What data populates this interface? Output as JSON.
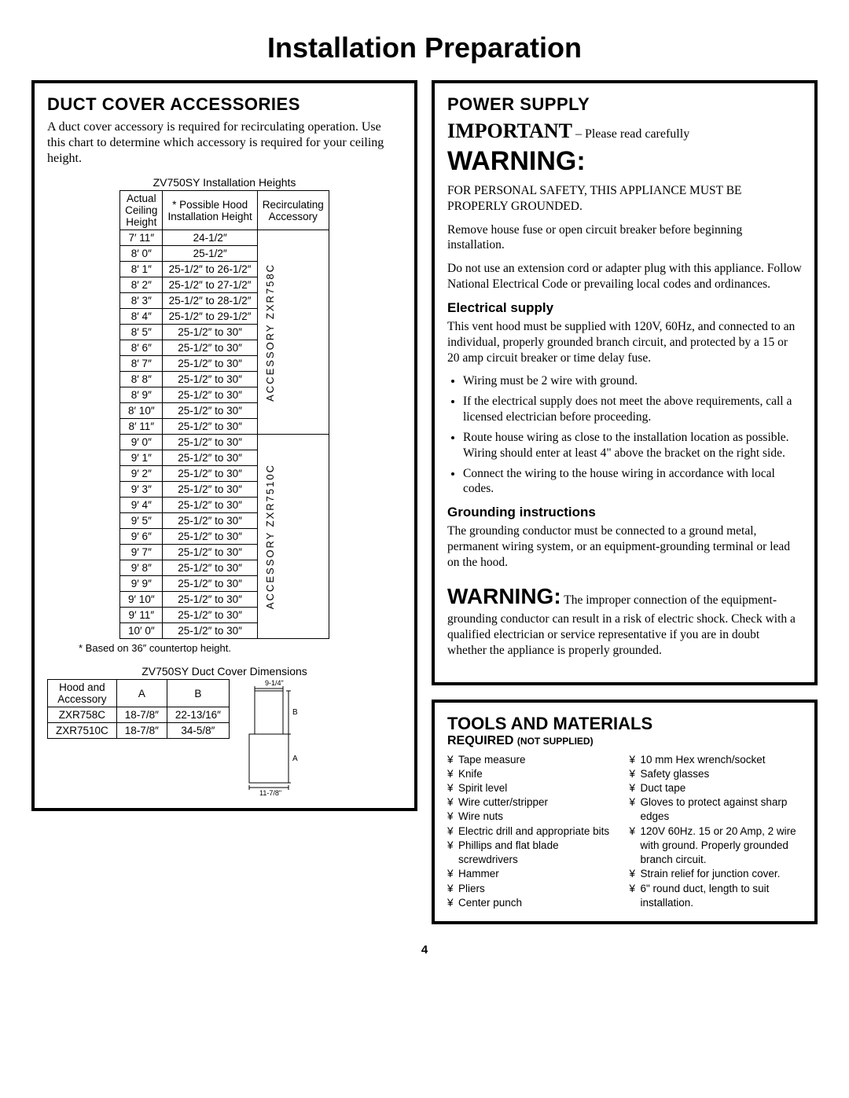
{
  "page_title": "Installation Preparation",
  "page_number": "4",
  "left": {
    "heading": "DUCT COVER ACCESSORIES",
    "intro": "A duct cover accessory is required for recirculating operation. Use this chart to determine which accessory is required for your ceiling height.",
    "heights_caption": "ZV750SY Installation Heights",
    "heights_headers": {
      "c1a": "Actual",
      "c1b": "Ceiling",
      "c1c": "Height",
      "c2a": "* Possible Hood",
      "c2b": "Installation Height",
      "c3a": "Recirculating",
      "c3b": "Accessory"
    },
    "accessory_label_1": "ACCESSORY ZXR758C",
    "accessory_label_2": "ACCESSORY ZXR7510C",
    "rows_g1": [
      {
        "h": "7′ 11″",
        "v": "24-1/2″"
      },
      {
        "h": "8′ 0″",
        "v": "25-1/2″"
      },
      {
        "h": "8′ 1″",
        "v": "25-1/2″ to 26-1/2″"
      },
      {
        "h": "8′ 2″",
        "v": "25-1/2″ to 27-1/2″"
      },
      {
        "h": "8′ 3″",
        "v": "25-1/2″ to 28-1/2″"
      },
      {
        "h": "8′ 4″",
        "v": "25-1/2″ to 29-1/2″"
      },
      {
        "h": "8′ 5″",
        "v": "25-1/2″ to 30″"
      },
      {
        "h": "8′ 6″",
        "v": "25-1/2″ to 30″"
      },
      {
        "h": "8′ 7″",
        "v": "25-1/2″ to 30″"
      },
      {
        "h": "8′ 8″",
        "v": "25-1/2″ to 30″"
      },
      {
        "h": "8′ 9″",
        "v": "25-1/2″ to 30″"
      },
      {
        "h": "8′ 10″",
        "v": "25-1/2″ to 30″"
      },
      {
        "h": "8′ 11″",
        "v": "25-1/2″ to 30″"
      }
    ],
    "rows_g2": [
      {
        "h": "9′ 0″",
        "v": "25-1/2″ to 30″"
      },
      {
        "h": "9′ 1″",
        "v": "25-1/2″ to 30″"
      },
      {
        "h": "9′ 2″",
        "v": "25-1/2″ to 30″"
      },
      {
        "h": "9′ 3″",
        "v": "25-1/2″ to 30″"
      },
      {
        "h": "9′ 4″",
        "v": "25-1/2″ to 30″"
      },
      {
        "h": "9′ 5″",
        "v": "25-1/2″ to 30″"
      },
      {
        "h": "9′ 6″",
        "v": "25-1/2″ to 30″"
      },
      {
        "h": "9′ 7″",
        "v": "25-1/2″ to 30″"
      },
      {
        "h": "9′ 8″",
        "v": "25-1/2″ to 30″"
      },
      {
        "h": "9′ 9″",
        "v": "25-1/2″ to 30″"
      },
      {
        "h": "9′ 10″",
        "v": "25-1/2″ to 30″"
      },
      {
        "h": "9′ 11″",
        "v": "25-1/2″ to 30″"
      },
      {
        "h": "10′ 0″",
        "v": "25-1/2″ to 30″"
      }
    ],
    "footnote": "* Based on 36″ countertop height.",
    "dims_caption": "ZV750SY Duct Cover Dimensions",
    "dims_headers": {
      "c1a": "Hood and",
      "c1b": "Accessory",
      "c2": "A",
      "c3": "B"
    },
    "dims_rows": [
      {
        "n": "ZXR758C",
        "a": "18-7/8″",
        "b": "22-13/16″"
      },
      {
        "n": "ZXR7510C",
        "a": "18-7/8″",
        "b": "34-5/8″"
      }
    ],
    "diagram": {
      "top": "9-1/4\"",
      "bottom": "11-7/8\"",
      "labelA": "A",
      "labelB": "B"
    }
  },
  "right": {
    "ps_heading": "POWER SUPPLY",
    "important_strong": "IMPORTANT",
    "important_rest": " – Please read carefully",
    "warning": "WARNING:",
    "safety_caps": "FOR PERSONAL SAFETY, THIS APPLIANCE MUST BE PROPERLY GROUNDED.",
    "p_fuse": "Remove house fuse or open circuit breaker before beginning installation.",
    "p_cord": "Do not use an extension cord or adapter plug with this appliance. Follow National Electrical Code or prevailing local codes and ordinances.",
    "elec_head": "Electrical supply",
    "elec_p": "This vent hood must be supplied with 120V, 60Hz, and connected to an individual, properly grounded branch circuit, and protected by a 15 or 20 amp circuit breaker or time delay fuse.",
    "elec_bullets": [
      "Wiring must be 2 wire with ground.",
      "If the electrical supply does not meet the above requirements, call a licensed electrician before proceeding.",
      "Route house wiring as close to the installation location as possible. Wiring should enter at least 4\" above the bracket on the right side.",
      "Connect the wiring to the house wiring in accordance with local codes."
    ],
    "ground_head": "Grounding instructions",
    "ground_p": "The grounding conductor must be connected to a ground metal, permanent wiring system, or an equipment-grounding terminal or lead on the hood.",
    "warn2_big": "WARNING:",
    "warn2_rest": " The improper connection of the equipment-grounding conductor can result in a risk of electric shock. Check with a qualified electrician or service representative if you are in doubt whether the appliance is properly grounded.",
    "tools_head": "TOOLS AND MATERIALS",
    "req": "REQUIRED ",
    "req_small": "(NOT SUPPLIED)",
    "tools_left": [
      "Tape measure",
      "Knife",
      "Spirit level",
      "Wire cutter/stripper",
      "Wire nuts",
      "Electric drill and appropriate bits",
      "Phillips and flat blade screwdrivers",
      "Hammer",
      "Pliers",
      "Center punch"
    ],
    "tools_right": [
      "10 mm Hex wrench/socket",
      "Safety glasses",
      "Duct tape",
      "Gloves to protect against sharp edges",
      "120V 60Hz. 15 or 20 Amp, 2 wire with ground. Properly grounded branch circuit.",
      "Strain relief for junction cover.",
      "6\" round duct, length to suit installation."
    ]
  }
}
